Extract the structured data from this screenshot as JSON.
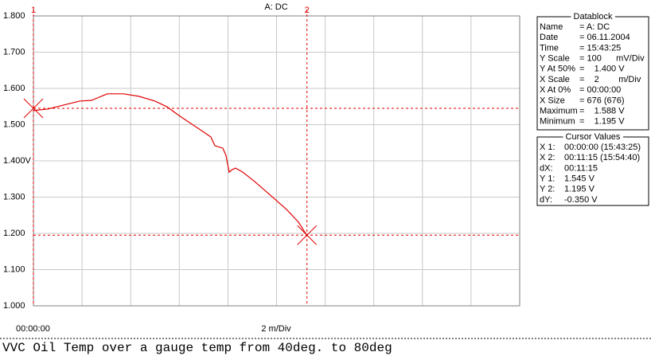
{
  "chart_data": {
    "type": "line",
    "title": "A: DC",
    "xlabel": "2 m/Div",
    "x_origin_label": "00:00:00",
    "color": "#e00000",
    "xlim": [
      0,
      20
    ],
    "xgrid": [
      0,
      2,
      4,
      6,
      8,
      10,
      12,
      14,
      16,
      18,
      20
    ],
    "ylim": [
      1.0,
      1.8
    ],
    "yticks": [
      {
        "value": 1.8,
        "label": "1.800"
      },
      {
        "value": 1.7,
        "label": "1.700"
      },
      {
        "value": 1.6,
        "label": "1.600"
      },
      {
        "value": 1.5,
        "label": "1.500"
      },
      {
        "value": 1.4,
        "label": "1.400V"
      },
      {
        "value": 1.3,
        "label": "1.300"
      },
      {
        "value": 1.2,
        "label": "1.200"
      },
      {
        "value": 1.1,
        "label": "1.100"
      },
      {
        "value": 1.0,
        "label": "1.000"
      }
    ],
    "grid": true,
    "x": [
      0,
      0.59,
      1.24,
      1.9,
      2.39,
      3.04,
      3.7,
      4.35,
      5.0,
      5.5,
      5.99,
      6.48,
      6.97,
      7.3,
      7.46,
      7.79,
      7.92,
      8.05,
      8.18,
      8.31,
      8.61,
      9.1,
      9.75,
      10.41,
      10.9,
      11.26
    ],
    "values": [
      1.539,
      1.543,
      1.554,
      1.565,
      1.567,
      1.585,
      1.585,
      1.578,
      1.565,
      1.549,
      1.525,
      1.503,
      1.481,
      1.466,
      1.442,
      1.435,
      1.415,
      1.369,
      1.376,
      1.38,
      1.369,
      1.343,
      1.305,
      1.266,
      1.231,
      1.193
    ],
    "cursors": [
      {
        "label": "1",
        "x": 0,
        "y": 1.545
      },
      {
        "label": "2",
        "x": 11.25,
        "y": 1.195
      }
    ]
  },
  "datablock": {
    "title": "Datablock",
    "rows": [
      [
        "Name",
        "= A: DC"
      ],
      [
        "Date",
        "= 06.11.2004"
      ],
      [
        "Time",
        "= 15:43:25"
      ],
      [
        "Y Scale",
        "= 100      mV/Div"
      ],
      [
        "Y At 50%",
        "=    1.400 V"
      ],
      [
        "X Scale",
        "=    2        m/Div"
      ],
      [
        "X At 0%",
        "= 00:00:00"
      ],
      [
        "X Size",
        "= 676 (676)"
      ],
      [
        "Maximum",
        "=    1.588 V"
      ],
      [
        "Minimum",
        "=    1.195 V"
      ]
    ]
  },
  "cursor_values": {
    "title": "Cursor Values",
    "rows": [
      [
        "X 1:",
        "00:00:00 (15:43:25)"
      ],
      [
        "X 2:",
        "00:11:15 (15:54:40)"
      ],
      [
        "dX:",
        "00:11:15"
      ],
      [
        "Y 1:",
        "1.545 V"
      ],
      [
        "Y 2:",
        "1.195 V"
      ],
      [
        "dY:",
        "-0.350 V"
      ]
    ]
  },
  "caption": "VVC Oil Temp over a gauge temp from 40deg. to 80deg"
}
